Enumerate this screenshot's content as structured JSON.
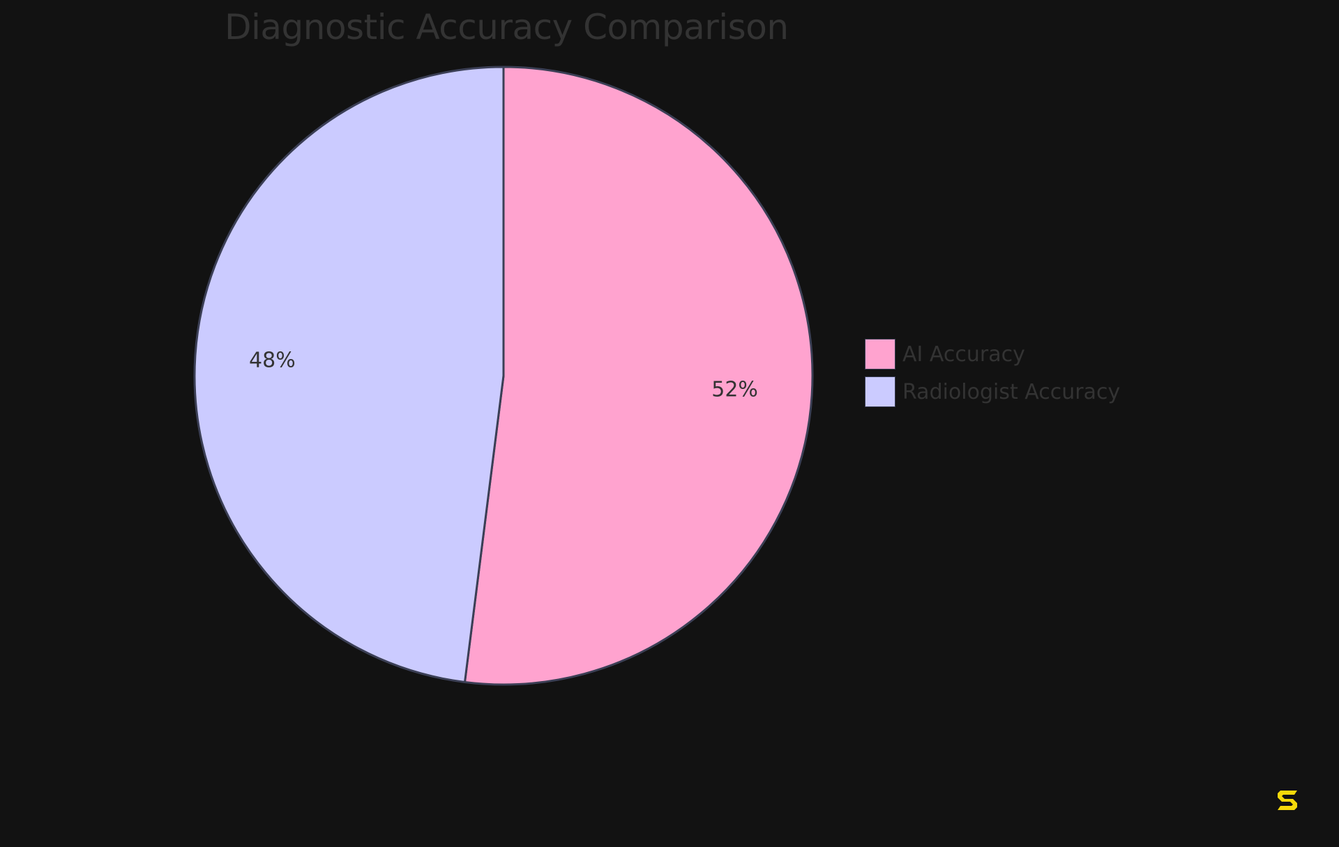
{
  "chart_data": {
    "type": "pie",
    "title": "Diagnostic Accuracy Comparison",
    "slices": [
      {
        "label": "AI Accuracy",
        "value": 52,
        "display": "52%",
        "color": "#FFA3CF"
      },
      {
        "label": "Radiologist Accuracy",
        "value": 48,
        "display": "48%",
        "color": "#CBCBFF"
      }
    ],
    "start_angle": "12 o'clock",
    "direction": "clockwise",
    "stroke_color": "#3B3F55",
    "legend_position": "right",
    "background": "#121212"
  },
  "logo": {
    "icon": "s-logo-icon",
    "color": "#F5D90A"
  }
}
